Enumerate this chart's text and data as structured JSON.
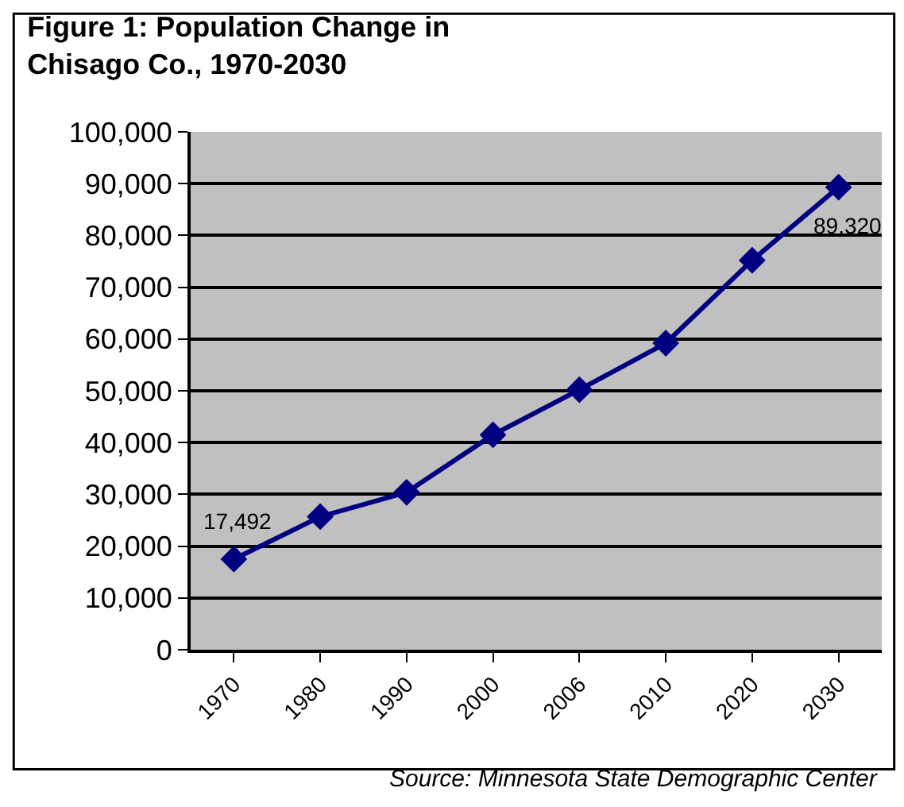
{
  "chart_data": {
    "type": "line",
    "title": "Figure 1: Population Change in\nChisago Co., 1970-2030",
    "categories": [
      "1970",
      "1980",
      "1990",
      "2000",
      "2006",
      "2010",
      "2020",
      "2030"
    ],
    "series": [
      {
        "color": "#000080",
        "values": [
          17492,
          25700,
          30400,
          41500,
          50200,
          59200,
          75200,
          89320
        ],
        "value_labels": [
          "17,492",
          null,
          null,
          null,
          null,
          null,
          null,
          "89,320"
        ]
      }
    ],
    "ylim": [
      0,
      100000
    ],
    "yticks": [
      {
        "value": 0,
        "label": "0"
      },
      {
        "value": 10000,
        "label": "10,000"
      },
      {
        "value": 20000,
        "label": "20,000"
      },
      {
        "value": 30000,
        "label": "30,000"
      },
      {
        "value": 40000,
        "label": "40,000"
      },
      {
        "value": 50000,
        "label": "50,000"
      },
      {
        "value": 60000,
        "label": "60,000"
      },
      {
        "value": 70000,
        "label": "70,000"
      },
      {
        "value": 80000,
        "label": "80,000"
      },
      {
        "value": 90000,
        "label": "90,000"
      },
      {
        "value": 100000,
        "label": "100,000"
      }
    ],
    "grid": "y",
    "marker": "diamond",
    "line_style": "solid",
    "annotations": [
      "Source: Minnesota State Demographic Center"
    ]
  }
}
